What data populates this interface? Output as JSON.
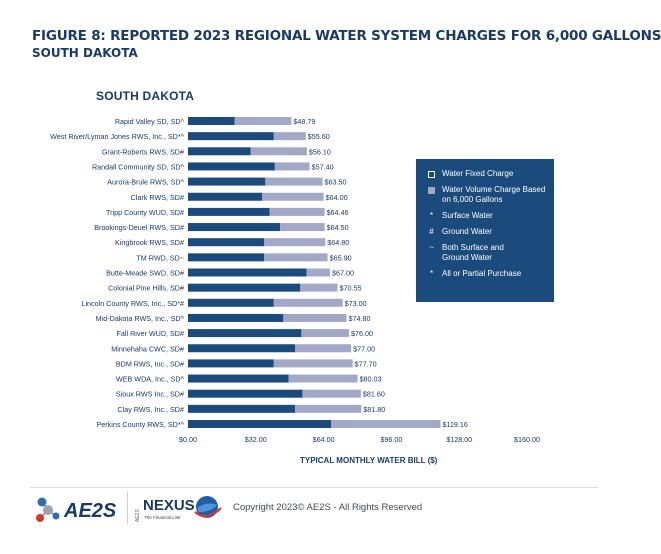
{
  "figure": {
    "title": "FIGURE 8: REPORTED 2023 REGIONAL WATER SYSTEM CHARGES FOR 6,000 GALLONS",
    "subtitle": "SOUTH DAKOTA"
  },
  "colors": {
    "fixed": "#1b4a7c",
    "volume": "#a3a8c6",
    "text": "#1a3a66"
  },
  "legend": {
    "items": [
      {
        "type": "swatch",
        "style": "fixed",
        "label1": "Water Fixed Charge",
        "label2": ""
      },
      {
        "type": "swatch",
        "style": "volume",
        "label1": "Water Volume Charge Based",
        "label2": "on 6,000 Gallons"
      },
      {
        "type": "symbol",
        "symbol": "*",
        "label1": "Surface Water",
        "label2": ""
      },
      {
        "type": "symbol",
        "symbol": "#",
        "label1": "Ground Water",
        "label2": ""
      },
      {
        "type": "symbol",
        "symbol": "~",
        "label1": "Both Surface and",
        "label2": "Ground Water"
      },
      {
        "type": "symbol",
        "symbol": "*",
        "label1": "All or Partial Purchase",
        "label2": ""
      }
    ]
  },
  "chart_data": {
    "type": "bar",
    "orientation": "horizontal",
    "stacked": true,
    "title": "SOUTH DAKOTA",
    "xlabel": "TYPICAL MONTHLY WATER BILL ($)",
    "ylabel": "",
    "xlim": [
      0,
      160
    ],
    "xticks": [
      {
        "value": 0,
        "label": "$0.00"
      },
      {
        "value": 32,
        "label": "$32.00"
      },
      {
        "value": 64,
        "label": "$64.00"
      },
      {
        "value": 96,
        "label": "$96.00"
      },
      {
        "value": 128,
        "label": "$128.00"
      },
      {
        "value": 160,
        "label": "$160.00"
      }
    ],
    "grid": false,
    "legend_position": "right",
    "categories": [
      "Rapid Valley SD, SD^",
      "West River/Lyman Jones RWS, Inc., SD*^",
      "Grant-Roberts RWS, SD#",
      "Randall Community SD, SD^",
      "Aurora-Brule RWS, SD^",
      "Clark RWS, SD#",
      "Tripp County WUD, SD#",
      "Brookings-Deuel RWS, SD#",
      "Kingbrook RWS, SD#",
      "TM RWD, SD~",
      "Butte-Meade SWD, SD#",
      "Colonial Pine Hills, SD#",
      "Lincoln County RWS, Inc., SD*#",
      "Mid-Dakota RWS, Inc., SD^",
      "Fall River WUD, SD#",
      "Minnehaha CWC, SD#",
      "BDM RWS, Inc., SD#",
      "WEB WDA, Inc., SD^",
      "Sioux RWS Inc., SD#",
      "Clay RWS, Inc., SD#",
      "Perkins County RWS, SD*^"
    ],
    "series": [
      {
        "name": "Water Fixed Charge",
        "values": [
          22.0,
          40.5,
          29.5,
          41.0,
          36.5,
          35.0,
          38.5,
          43.5,
          36.0,
          36.0,
          56.0,
          53.0,
          40.5,
          45.0,
          53.5,
          50.5,
          40.5,
          47.5,
          54.0,
          50.5,
          67.5
        ]
      },
      {
        "name": "Water Volume Charge Based on 6,000 Gallons",
        "values": [
          26.79,
          15.1,
          26.6,
          16.4,
          27.0,
          29.0,
          25.96,
          21.0,
          28.8,
          29.9,
          11.0,
          17.55,
          32.5,
          29.8,
          22.5,
          26.5,
          37.2,
          32.53,
          27.6,
          31.3,
          51.66
        ]
      }
    ],
    "totals": [
      48.79,
      55.6,
      56.1,
      57.4,
      63.5,
      64.0,
      64.46,
      64.5,
      64.8,
      65.9,
      67.0,
      70.55,
      73.0,
      74.8,
      76.0,
      77.0,
      77.7,
      80.03,
      81.6,
      81.8,
      119.16
    ],
    "value_labels": [
      "$48.79",
      "$55.60",
      "$56.10",
      "$57.40",
      "$63.50",
      "$64.00",
      "$64.46",
      "$64.50",
      "$64.80",
      "$65.90",
      "$67.00",
      "$70.55",
      "$73.00",
      "$74.80",
      "$76.00",
      "$77.00",
      "$77.70",
      "$80.03",
      "$81.60",
      "$81.80",
      "$119.16"
    ]
  },
  "footer": {
    "aes_logo_text": "AE2S",
    "nexus_logo_text": "NEXUS",
    "nexus_prefix": "AE2S",
    "nexus_tagline": "The Financial Link",
    "copyright": "Copyright 2023© AE2S - All Rights Reserved"
  }
}
